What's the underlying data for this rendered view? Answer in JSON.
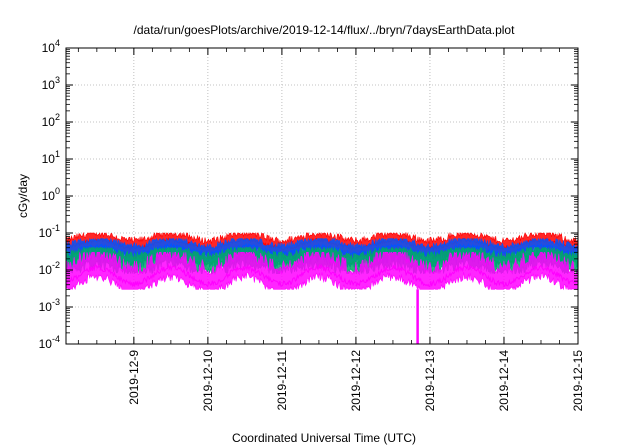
{
  "chart_data": {
    "type": "line",
    "title": "/data/run/goesPlots/archive/2019-12-14/flux/../bryn/7daysEarthData.plot",
    "xlabel": "Coordinated Universal Time (UTC)",
    "ylabel": "cGy/day",
    "xlim": [
      "2019-12-08T02:00",
      "2019-12-15T00:00"
    ],
    "x_tick_labels": [
      "2019-12-9",
      "2019-12-10",
      "2019-12-11",
      "2019-12-12",
      "2019-12-13",
      "2019-12-14",
      "2019-12-15"
    ],
    "x_ticks": [
      "2019-12-09",
      "2019-12-10",
      "2019-12-11",
      "2019-12-12",
      "2019-12-13",
      "2019-12-14",
      "2019-12-15"
    ],
    "ylim": [
      0.0001,
      10000
    ],
    "y_scale": "log",
    "y_ticks": [
      {
        "base": "10",
        "exp": "-4"
      },
      {
        "base": "10",
        "exp": "-3"
      },
      {
        "base": "10",
        "exp": "-2"
      },
      {
        "base": "10",
        "exp": "-1"
      },
      {
        "base": "10",
        "exp": "0"
      },
      {
        "base": "10",
        "exp": "1"
      },
      {
        "base": "10",
        "exp": "2"
      },
      {
        "base": "10",
        "exp": "3"
      },
      {
        "base": "10",
        "exp": "4"
      }
    ],
    "grid": true,
    "legend": "none",
    "series": [
      {
        "color": "#ff0000",
        "max": 0.1,
        "min": 0.02,
        "typical": 0.05
      },
      {
        "color": "#0055ff",
        "max": 0.07,
        "min": 0.012,
        "typical": 0.035
      },
      {
        "color": "#00aa66",
        "max": 0.04,
        "min": 0.008,
        "typical": 0.02
      },
      {
        "color": "#ff00ff",
        "max": 0.03,
        "min": 0.003,
        "typical": 0.007,
        "dropout": {
          "x": "2019-12-12T20:00",
          "value": 0.0001
        }
      }
    ]
  }
}
